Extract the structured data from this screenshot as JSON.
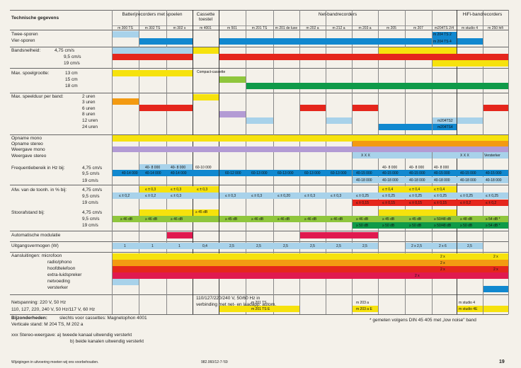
{
  "colors": {
    "yellow": "#f6e20d",
    "red": "#e5261c",
    "green": "#0f9a49",
    "lightblue": "#a8d2ea",
    "blue": "#1188cf",
    "purple": "#b39bd4",
    "orange": "#f39a12",
    "lime": "#8fc63c",
    "crimson": "#e01a4f"
  },
  "header": {
    "title": "Technische gegevens",
    "groups": [
      "Batterijrecorders met spoelen",
      "Cassette toestel",
      "Net-bandrecorders",
      "HiFi-bandrecorders"
    ],
    "models": [
      "m 300 TS",
      "m 302 TS",
      "m 302 s",
      "m 4001",
      "m 501",
      "m 201 TS",
      "m 201 de luxe",
      "m 202 a",
      "m 212 a",
      "m 203 a",
      "m 205",
      "m 207",
      "m204TS 2/4",
      "m studio 4",
      "m 250 hifi"
    ]
  },
  "sections": {
    "sporen": [
      "Twee-sporen",
      "Vier-sporen"
    ],
    "snelheid": [
      "Bandsnelheid:",
      "4,75 cm/s",
      "9,5 cm/s",
      "19 cm/s"
    ],
    "spoel": [
      "Max. spoelgrootte:",
      "13 cm",
      "15 cm",
      "18 cm"
    ],
    "speelduur": [
      "Max. speelduur per band:",
      "2 uren",
      "3 uren",
      "6 uren",
      "8 uren",
      "12 uren",
      "24 uren"
    ],
    "opname": [
      "Opname mono",
      "Opname stereo",
      "Weergave mono",
      "Weergave stereo"
    ],
    "freq": [
      "Frequentiebereik in Hz bij:",
      "4,75 cm/s",
      "9,5 cm/s",
      "19 cm/s"
    ],
    "afw": [
      "Afw. van de toonh. in % bij:",
      "4,75 cm/s",
      "9,5 cm/s",
      "19 cm/s"
    ],
    "stoor": [
      "Stoorafstand bij:",
      "4,75 cm/s",
      "9,5 cm/s",
      "19 cm/s"
    ],
    "auto": "Automatische modulatie",
    "uitgang": "Uitgangsvermogen (W)",
    "aansl": [
      "Aansluitingen: microfoon",
      "radio/phono",
      "hoofdtelefoon",
      "extra-luidspreker",
      "netvoeding",
      "versterker"
    ],
    "net": [
      "Netspanning: 220 V, 50 Hz",
      "110, 127, 220, 240 V, 50 Hz/117 V, 60 Hz"
    ]
  },
  "cell_texts": {
    "tweespoor_204": "m 204 TS 2",
    "vierspoor_204": "m 204 TS 4",
    "compact": "Compact-cassette",
    "ts2": "m204TS2",
    "ts4": "m204TS4",
    "xxx1": "X X X",
    "xxx2": "X X X",
    "versterker": "Versterker",
    "f_300": "40-14 000",
    "f_302ts_a": "40- 8 000",
    "f_302ts_b": "40-14 000",
    "f_302s_a": "40- 8 000",
    "f_302s_b": "40-14 000",
    "f_4001": "60-10 000",
    "f_501": "60-12 000",
    "f_201ts": "60-13 000",
    "f_201dl": "60-13 000",
    "f_202": "60-13 000",
    "f_212": "60-13 000",
    "f_203_b": "40-15 000",
    "f_203_c": "40-18 000",
    "f_205_a": "40- 8 000",
    "f_205_b": "40-15 000",
    "f_205_c": "40-18 000",
    "f_207_a": "40- 8 000",
    "f_207_b": "40-15 000",
    "f_207_c": "40-18 000",
    "f_204_a": "40- 8 000",
    "f_204_b": "40-15 000",
    "f_204_c": "40-18 000",
    "f_studio_b": "40-15 000",
    "f_studio_c": "40-18 000",
    "f_hifi_b": "40-15 000",
    "f_hifi_c": "40-18 000",
    "a_300": "≤ ± 0,2",
    "a_302ts_a": "≤ ± 0,3",
    "a_302ts_b": "≤ ± 0,2",
    "a_302s_a": "≤ ± 0,3",
    "a_302s_b": "≤ ± 0,3",
    "a_4001": "≤ ± 0,3",
    "a_501": "≤ ± 0,3",
    "a_201ts": "≤ ± 0,3",
    "a_201dl": "≤ ± 0,20",
    "a_202": "≤ ± 0,3",
    "a_212": "≤ ± 0,3",
    "a_203_b": "≤ ± 0,25",
    "a_203_c": "≤ ± 0,15",
    "a_205_a": "≤ ± 0,4",
    "a_205_b": "≤ ± 0,25",
    "a_205_c": "≤ ± 0,15",
    "a_207_a": "≤ ± 0,4",
    "a_207_b": "≤ ± 0,25",
    "a_207_c": "≤ ± 0,15",
    "a_204_a": "≤ ± 0,4",
    "a_204_b": "≤ ± 0,25",
    "a_204_c": "≤ ± 0,15",
    "a_studio_b": "≤ ± 0,25",
    "a_studio_c": "≤ ± 0,2",
    "a_hifi_b": "≤ ± 0,25",
    "a_hifi_c": "≤ ± 0,2",
    "s_4001": "≥ 45 dB",
    "s_300": "≥ 46 dB",
    "s_302ts": "≥ 46 dB",
    "s_302s": "≥ 46 dB",
    "s_501": "≥ 45 dB",
    "s_201ts": "≥ 46 dB",
    "s_201dl": "≥ 46 dB",
    "s_202": "≥ 46 dB",
    "s_212": "≥ 46 dB",
    "s_203_b": "≥ 46 dB",
    "s_203_c": "≥ 50 dB",
    "s_205_b": "≥ 45 dB",
    "s_205_c": "≥ 50 dB",
    "s_207_b": "≥ 45 dB",
    "s_207_c": "≥ 50 dB",
    "s_204_b": "≥ 50/48 dB",
    "s_204_c": "≥ 50/48 dB",
    "s_studio_b": "≥ 48 dB",
    "s_studio_c": "≥ 50 dB",
    "s_hifi_b": "≥ 54 dB *",
    "s_hifi_c": "≥ 54 dB *",
    "w_300": "1",
    "w_302ts": "1",
    "w_302s": "1",
    "w_4001": "0,4",
    "w_501": "2,5",
    "w_201ts": "2,5",
    "w_201dl": "2,5",
    "w_202": "2,5",
    "w_212": "2,5",
    "w_203": "2,5",
    "w_207": "2 x 2,5",
    "w_204": "2 x 6",
    "w_studio": "2,5",
    "c_207_1": "2 x",
    "c_207_2": "2 x",
    "c_207_3": "2 x",
    "c_207_4": "2 x",
    "c_hifi_1": "2 x",
    "c_hifi_2": "2 x",
    "net_text": "110/127/220/240 V, 50/60 Hz in verbinding met net- en laadapp. autom.",
    "n_201ts": "m 201 TS",
    "n_201tse": "m 201 TS E",
    "n_203": "m 203 a",
    "n_203e": "m 203 a E",
    "n_studio": "m studio 4",
    "n_studioe": "m studio 4E"
  },
  "footnotes": {
    "bijzonder_label": "Bijzonderheden:",
    "bijzonder_text": "slechts voor cassettes: Magnetophon 4001",
    "verticale": "Verticale stand: M 204 TS, M 202 a",
    "stereo": "xxx Stereo-weergave: a) tweede kanaal uitwendig versterkt",
    "stereo_b": "b) beide kanalen uitwendig versterkt",
    "gemeten": "* gemeten volgens DIN 45 405 met „low noise\" band"
  },
  "footer": {
    "disclaimer": "Wijzigingen in uitvoering moeten wij ons voorbehouden.",
    "code": "982.060/12-7-'69",
    "page": "19"
  }
}
